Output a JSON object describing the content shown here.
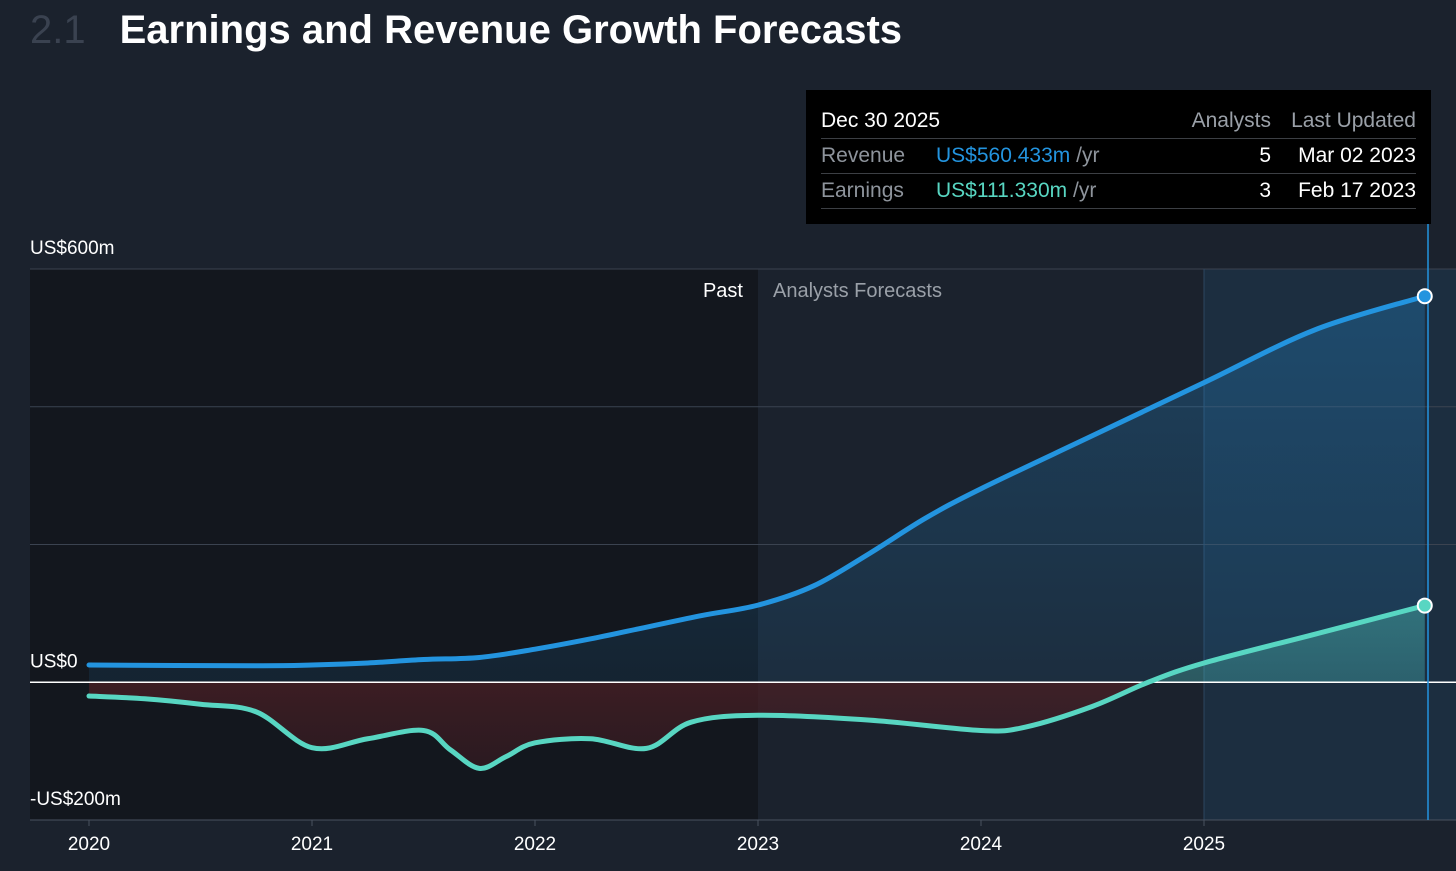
{
  "header": {
    "section_number": "2.1",
    "title": "Earnings and Revenue Growth Forecasts"
  },
  "colors": {
    "background": "#1b222d",
    "revenue": "#2394df",
    "earnings": "#58d6c2",
    "negative_fill": "#4a2229",
    "past_region": "#13171e",
    "forecast_highlight": "#1f3d58"
  },
  "regions": {
    "past_label": "Past",
    "forecast_label": "Analysts Forecasts",
    "split_x": 2023.0
  },
  "tooltip": {
    "date": "Dec 30 2025",
    "col_analysts": "Analysts",
    "col_last_updated": "Last Updated",
    "unit": "/yr",
    "rows": [
      {
        "label": "Revenue",
        "value": "US$560.433m",
        "analysts": "5",
        "last_updated": "Mar 02 2023",
        "color": "#2394df"
      },
      {
        "label": "Earnings",
        "value": "US$111.330m",
        "analysts": "3",
        "last_updated": "Feb 17 2023",
        "color": "#58d6c2"
      }
    ]
  },
  "chart_data": {
    "type": "area",
    "title": "Earnings and Revenue Growth Forecasts",
    "xlim": [
      2020,
      2026
    ],
    "ylim": [
      -200,
      600
    ],
    "x_ticks": [
      2020,
      2021,
      2022,
      2023,
      2024,
      2025
    ],
    "x_tick_labels": [
      "2020",
      "2021",
      "2022",
      "2023",
      "2024",
      "2025"
    ],
    "y_tick_labels": [
      {
        "value": 600,
        "label": "US$600m"
      },
      {
        "value": 0,
        "label": "US$0"
      },
      {
        "value": -200,
        "label": "-US$200m"
      }
    ],
    "gridlines": [
      600,
      400,
      200,
      0,
      -200
    ],
    "legend": "none",
    "series": [
      {
        "name": "Revenue",
        "x": [
          2020.0,
          2020.75,
          2021.0,
          2021.25,
          2021.5,
          2021.75,
          2022.0,
          2022.25,
          2022.5,
          2022.75,
          2023.0,
          2023.25,
          2023.5,
          2023.75,
          2024.0,
          2024.5,
          2025.0,
          2025.5,
          2025.99
        ],
        "y": [
          25,
          24,
          25,
          28,
          33,
          36,
          48,
          63,
          80,
          97,
          112,
          140,
          187,
          238,
          281,
          358,
          435,
          512,
          560.433
        ]
      },
      {
        "name": "Earnings",
        "x": [
          2020.0,
          2020.25,
          2020.5,
          2020.75,
          2021.0,
          2021.25,
          2021.5,
          2021.62,
          2021.75,
          2021.87,
          2022.0,
          2022.25,
          2022.5,
          2022.7,
          2023.0,
          2023.5,
          2024.0,
          2024.2,
          2024.5,
          2024.75,
          2025.0,
          2025.5,
          2025.99
        ],
        "y": [
          -20,
          -24,
          -32,
          -43,
          -95,
          -82,
          -70,
          -98,
          -125,
          -108,
          -88,
          -82,
          -96,
          -58,
          -48,
          -55,
          -70,
          -65,
          -35,
          0,
          28,
          70,
          111.33
        ]
      }
    ]
  }
}
